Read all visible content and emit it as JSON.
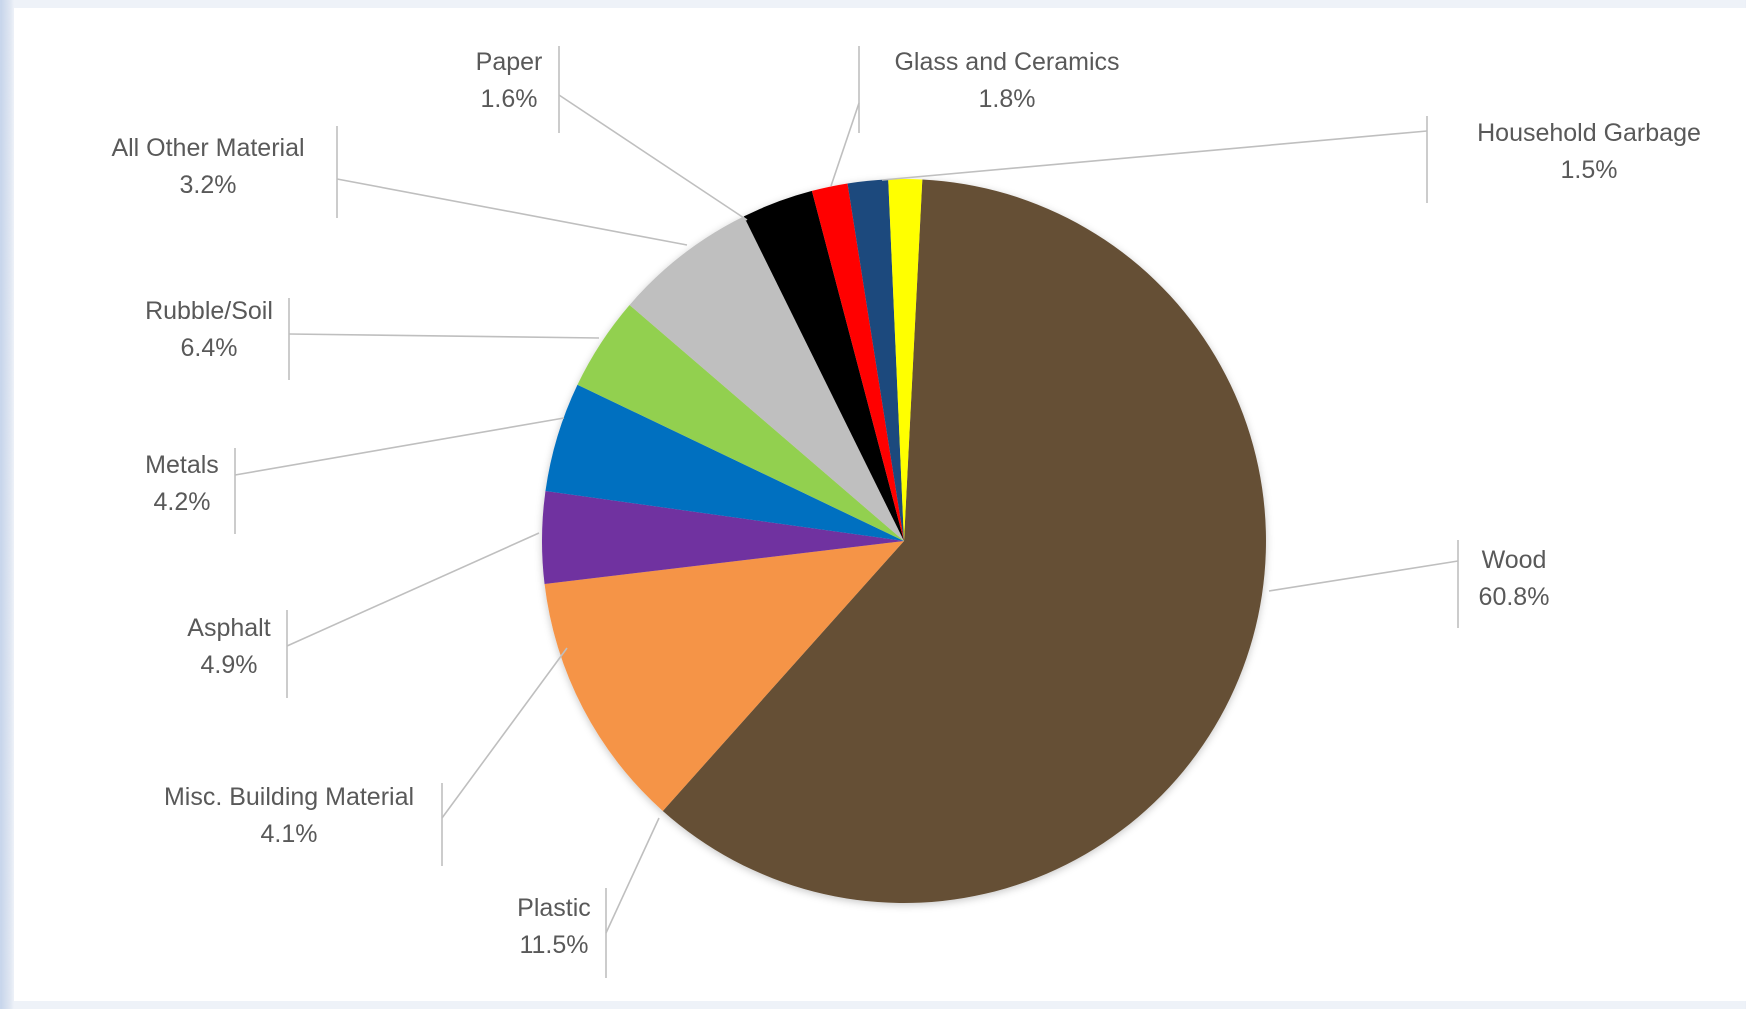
{
  "chart_data": {
    "type": "pie",
    "title": "",
    "slices": [
      {
        "label": "Wood",
        "value_text": "60.8%",
        "value": 60.8,
        "color": "#654f35"
      },
      {
        "label": "Plastic",
        "value_text": "11.5%",
        "value": 11.5,
        "color": "#f59446"
      },
      {
        "label": "Misc. Building Material",
        "value_text": "4.1%",
        "value": 4.1,
        "color": "#7030a0"
      },
      {
        "label": "Asphalt",
        "value_text": "4.9%",
        "value": 4.9,
        "color": "#0070c0"
      },
      {
        "label": "Metals",
        "value_text": "4.2%",
        "value": 4.2,
        "color": "#92d050"
      },
      {
        "label": "Rubble/Soil",
        "value_text": "6.4%",
        "value": 6.4,
        "color": "#bfbfbf"
      },
      {
        "label": "All Other Material",
        "value_text": "3.2%",
        "value": 3.2,
        "color": "#000000"
      },
      {
        "label": "Paper",
        "value_text": "1.6%",
        "value": 1.6,
        "color": "#ff0000"
      },
      {
        "label": "Glass and Ceramics",
        "value_text": "1.8%",
        "value": 1.8,
        "color": "#1f497d"
      },
      {
        "label": "Household Garbage",
        "value_text": "1.5%",
        "value": 1.5,
        "color": "#ffff00"
      }
    ],
    "legend": "none",
    "data_labels": "outside with leader lines"
  }
}
